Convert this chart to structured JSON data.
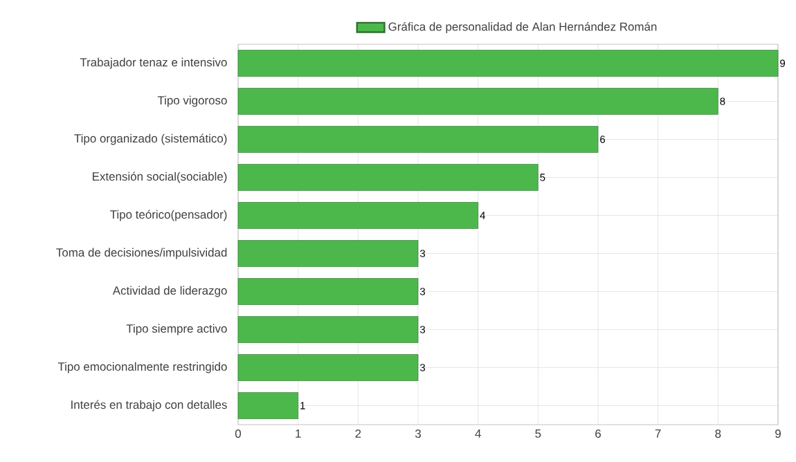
{
  "chart_data": {
    "type": "bar",
    "orientation": "horizontal",
    "categories": [
      "Trabajador tenaz e intensivo",
      "Tipo vigoroso",
      "Tipo organizado (sistemático)",
      "Extensión social(sociable)",
      "Tipo teórico(pensador)",
      "Toma de decisiones/impulsividad",
      "Actividad de liderazgo",
      "Tipo siempre activo",
      "Tipo emocionalmente restringido",
      "Interés en trabajo con detalles"
    ],
    "series": [
      {
        "name": "Gráfica de personalidad de Alan Hernández Román",
        "color": "#4cb84c",
        "values": [
          9,
          8,
          6,
          5,
          4,
          3,
          3,
          3,
          3,
          1
        ]
      }
    ],
    "xlim": [
      0,
      9
    ],
    "xticks": [
      0,
      1,
      2,
      3,
      4,
      5,
      6,
      7,
      8,
      9
    ],
    "grid": true,
    "legend": "top",
    "data_labels": true
  }
}
